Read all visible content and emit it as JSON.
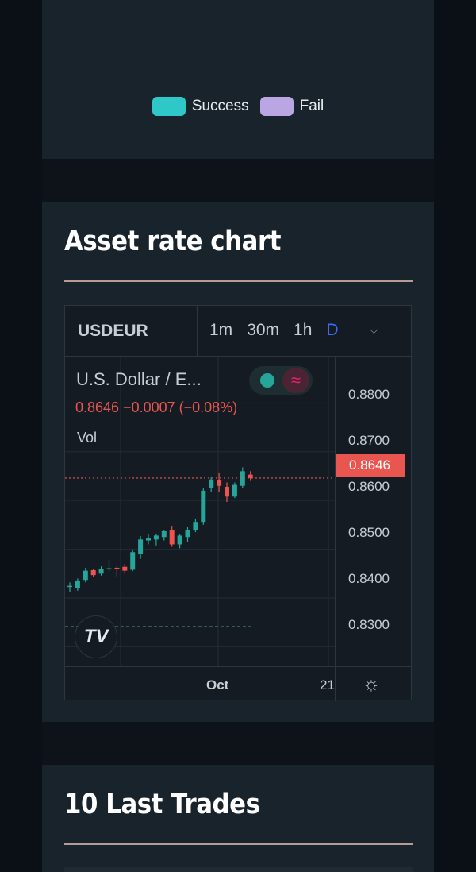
{
  "legend": {
    "items": [
      {
        "label": "Success",
        "color": "#2ec8c8"
      },
      {
        "label": "Fail",
        "color": "#b9a6e3"
      }
    ]
  },
  "rate_chart": {
    "title": "Asset rate chart",
    "symbol": "USDEUR",
    "intervals": [
      "1m",
      "30m",
      "1h",
      "D"
    ],
    "active_interval": "D",
    "description": "U.S. Dollar / E...",
    "ohlc_text": "0.8646  −0.0007 (−0.08%)",
    "vol_label": "Vol",
    "last_price": "0.8646",
    "price_scale": [
      "0.8800",
      "0.8700",
      "0.8600",
      "0.8500",
      "0.8400",
      "0.8300"
    ],
    "time_labels": [
      "Oct",
      "21"
    ],
    "logo_text": "TV"
  },
  "chart_data": {
    "type": "candlestick",
    "ylim": [
      0.826,
      0.8895
    ],
    "up_color": "#26a69a",
    "down_color": "#ef5350",
    "candles": [
      {
        "o": 0.8423,
        "h": 0.8432,
        "l": 0.8412,
        "c": 0.8425
      },
      {
        "o": 0.842,
        "h": 0.844,
        "l": 0.8415,
        "c": 0.8436
      },
      {
        "o": 0.8437,
        "h": 0.8462,
        "l": 0.8432,
        "c": 0.8456
      },
      {
        "o": 0.8457,
        "h": 0.846,
        "l": 0.8443,
        "c": 0.8447
      },
      {
        "o": 0.845,
        "h": 0.8465,
        "l": 0.8446,
        "c": 0.846
      },
      {
        "o": 0.846,
        "h": 0.8478,
        "l": 0.8455,
        "c": 0.8461
      },
      {
        "o": 0.8462,
        "h": 0.8465,
        "l": 0.8442,
        "c": 0.846
      },
      {
        "o": 0.8464,
        "h": 0.847,
        "l": 0.845,
        "c": 0.8456
      },
      {
        "o": 0.8458,
        "h": 0.8498,
        "l": 0.8455,
        "c": 0.8494
      },
      {
        "o": 0.849,
        "h": 0.8527,
        "l": 0.848,
        "c": 0.852
      },
      {
        "o": 0.8518,
        "h": 0.8532,
        "l": 0.851,
        "c": 0.8522
      },
      {
        "o": 0.852,
        "h": 0.8532,
        "l": 0.8508,
        "c": 0.8528
      },
      {
        "o": 0.8525,
        "h": 0.854,
        "l": 0.8518,
        "c": 0.8537
      },
      {
        "o": 0.854,
        "h": 0.8548,
        "l": 0.8505,
        "c": 0.851
      },
      {
        "o": 0.851,
        "h": 0.853,
        "l": 0.8502,
        "c": 0.8528
      },
      {
        "o": 0.8525,
        "h": 0.8545,
        "l": 0.8515,
        "c": 0.854
      },
      {
        "o": 0.854,
        "h": 0.8563,
        "l": 0.8535,
        "c": 0.8556
      },
      {
        "o": 0.8556,
        "h": 0.8626,
        "l": 0.855,
        "c": 0.862
      },
      {
        "o": 0.8625,
        "h": 0.8648,
        "l": 0.8618,
        "c": 0.8643
      },
      {
        "o": 0.8642,
        "h": 0.8656,
        "l": 0.8618,
        "c": 0.863
      },
      {
        "o": 0.8628,
        "h": 0.8637,
        "l": 0.8597,
        "c": 0.8608
      },
      {
        "o": 0.8608,
        "h": 0.8637,
        "l": 0.8605,
        "c": 0.8632
      },
      {
        "o": 0.863,
        "h": 0.8668,
        "l": 0.8625,
        "c": 0.866
      },
      {
        "o": 0.8653,
        "h": 0.866,
        "l": 0.864,
        "c": 0.8646
      }
    ]
  },
  "trades": {
    "title": "10 Last Trades"
  }
}
